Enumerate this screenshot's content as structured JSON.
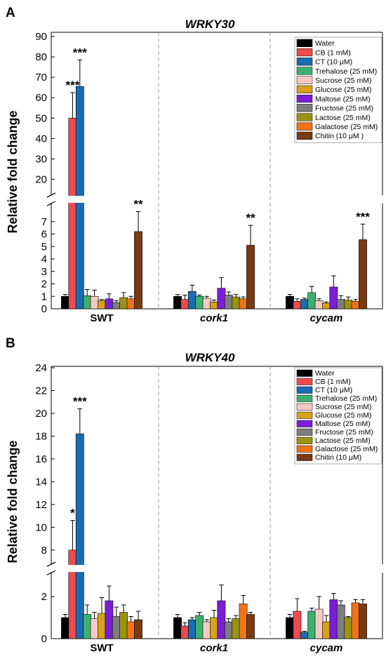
{
  "colors": {
    "Water": "#000000",
    "CB (1 mM)": "#ef4a4c",
    "CT (10 μM)": "#1a6cb0",
    "Trehalose (25 mM)": "#3db06f",
    "Sucrose (25 mM)": "#f7c9c4",
    "Glucose (25 mM)": "#d6a21b",
    "Maltose (25 mM)": "#7a1fd6",
    "Fructose (25 mM)": "#7d7d7d",
    "Lactose (25 mM)": "#999412",
    "Galactose (25 mM)": "#f07318",
    "Chitin (10 μM)": "#7a3a12",
    "Chitin (10 μM )": "#7a3a12"
  },
  "chart_data": [
    {
      "type": "bar",
      "panel_label": "A",
      "title": "WRKY30",
      "ylabel": "Relative fold change",
      "groups": [
        "SWT",
        "cork1",
        "cycam"
      ],
      "axis_break": {
        "lower_range": [
          0,
          8
        ],
        "upper_range": [
          15,
          90
        ]
      },
      "yticks_lower": [
        "0",
        "1",
        "2",
        "3",
        "4",
        "5",
        "6",
        "7"
      ],
      "yticks_upper": [
        "20",
        "30",
        "40",
        "50",
        "60",
        "70",
        "80",
        "90"
      ],
      "legend": [
        "Water",
        "CB (1 mM)",
        "CT (10 μM)",
        "Trehalose (25 mM)",
        "Sucrose (25 mM)",
        "Glucose (25 mM)",
        "Maltose (25 mM)",
        "Fructose (25 mM)",
        "Lactose (25 mM)",
        "Galactose (25 mM)",
        "Chitin (10 μM )"
      ],
      "legend_position": "top-right",
      "series": [
        {
          "name": "Water",
          "values": [
            1.0,
            1.0,
            1.0
          ],
          "errors": [
            0.15,
            0.15,
            0.15
          ],
          "stars": [
            "",
            "",
            ""
          ]
        },
        {
          "name": "CB (1 mM)",
          "values": [
            50.0,
            0.75,
            0.6
          ],
          "errors": [
            12.5,
            0.35,
            0.2
          ],
          "stars": [
            "***",
            "",
            ""
          ]
        },
        {
          "name": "CT (10 μM)",
          "values": [
            65.5,
            1.4,
            0.75
          ],
          "errors": [
            13.0,
            0.5,
            0.1
          ],
          "stars": [
            "***",
            "",
            ""
          ]
        },
        {
          "name": "Trehalose (25 mM)",
          "values": [
            1.05,
            1.0,
            1.3
          ],
          "errors": [
            0.5,
            0.1,
            0.5
          ],
          "stars": [
            "",
            "",
            ""
          ]
        },
        {
          "name": "Sucrose (25 mM)",
          "values": [
            1.0,
            0.85,
            0.65
          ],
          "errors": [
            0.5,
            0.15,
            0.15
          ],
          "stars": [
            "",
            "",
            ""
          ]
        },
        {
          "name": "Glucose (25 mM)",
          "values": [
            0.65,
            0.55,
            0.45
          ],
          "errors": [
            0.1,
            0.15,
            0.1
          ],
          "stars": [
            "",
            "",
            ""
          ]
        },
        {
          "name": "Maltose (25 mM)",
          "values": [
            0.8,
            1.65,
            1.75
          ],
          "errors": [
            0.4,
            0.85,
            0.9
          ],
          "stars": [
            "",
            "",
            ""
          ]
        },
        {
          "name": "Fructose (25 mM)",
          "values": [
            0.5,
            1.1,
            0.75
          ],
          "errors": [
            0.15,
            0.25,
            0.3
          ],
          "stars": [
            "",
            "",
            ""
          ]
        },
        {
          "name": "Lactose (25 mM)",
          "values": [
            0.9,
            0.95,
            0.7
          ],
          "errors": [
            0.4,
            0.2,
            0.25
          ],
          "stars": [
            "",
            "",
            ""
          ]
        },
        {
          "name": "Galactose (25 mM)",
          "values": [
            0.8,
            0.8,
            0.6
          ],
          "errors": [
            0.2,
            0.15,
            0.15
          ],
          "stars": [
            "",
            "",
            ""
          ]
        },
        {
          "name": "Chitin (10 μM )",
          "values": [
            6.2,
            5.1,
            5.55
          ],
          "errors": [
            1.6,
            1.6,
            1.25
          ],
          "stars": [
            "**",
            "**",
            "***"
          ]
        }
      ]
    },
    {
      "type": "bar",
      "panel_label": "B",
      "title": "WRKY40",
      "ylabel": "Relative fold change",
      "groups": [
        "SWT",
        "cork1",
        "cycam"
      ],
      "axis_break": {
        "lower_range": [
          0,
          3
        ],
        "upper_range": [
          7,
          24
        ]
      },
      "yticks_lower": [
        "0",
        "2"
      ],
      "yticks_upper": [
        "8",
        "10",
        "12",
        "14",
        "16",
        "18",
        "20",
        "22",
        "24"
      ],
      "legend": [
        "Water",
        "CB (1 mM)",
        "CT (10 μM)",
        "Trehalose (25 mM)",
        "Sucrose (25 mM)",
        "Glucose (25 mM)",
        "Maltose (25 mM)",
        "Fructose (25 mM)",
        "Lactose (25 mM)",
        "Galactose (25 mM)",
        "Chitin (10 μM)"
      ],
      "legend_position": "top-right",
      "series": [
        {
          "name": "Water",
          "values": [
            1.0,
            1.0,
            1.0
          ],
          "errors": [
            0.15,
            0.15,
            0.15
          ],
          "stars": [
            "",
            "",
            ""
          ]
        },
        {
          "name": "CB (1 mM)",
          "values": [
            8.0,
            0.6,
            1.3
          ],
          "errors": [
            2.6,
            0.15,
            0.6
          ],
          "stars": [
            "*",
            "",
            ""
          ]
        },
        {
          "name": "CT (10 μM)",
          "values": [
            18.2,
            0.9,
            0.3
          ],
          "errors": [
            2.2,
            0.1,
            0.05
          ],
          "stars": [
            "***",
            "",
            ""
          ]
        },
        {
          "name": "Trehalose (25 mM)",
          "values": [
            1.15,
            1.1,
            1.3
          ],
          "errors": [
            0.45,
            0.15,
            0.15
          ],
          "stars": [
            "",
            "",
            ""
          ]
        },
        {
          "name": "Sucrose (25 mM)",
          "values": [
            0.95,
            0.8,
            1.4
          ],
          "errors": [
            0.3,
            0.1,
            0.6
          ],
          "stars": [
            "",
            "",
            ""
          ]
        },
        {
          "name": "Glucose (25 mM)",
          "values": [
            1.2,
            1.0,
            0.8
          ],
          "errors": [
            0.75,
            0.35,
            0.3
          ],
          "stars": [
            "",
            "",
            ""
          ]
        },
        {
          "name": "Maltose (25 mM)",
          "values": [
            1.8,
            1.8,
            1.85
          ],
          "errors": [
            0.7,
            0.75,
            0.3
          ],
          "stars": [
            "",
            "",
            ""
          ]
        },
        {
          "name": "Fructose (25 mM)",
          "values": [
            1.05,
            0.8,
            1.6
          ],
          "errors": [
            0.45,
            0.15,
            0.2
          ],
          "stars": [
            "",
            "",
            ""
          ]
        },
        {
          "name": "Lactose (25 mM)",
          "values": [
            1.25,
            0.95,
            1.0
          ],
          "errors": [
            0.35,
            0.15,
            0.05
          ],
          "stars": [
            "",
            "",
            ""
          ]
        },
        {
          "name": "Galactose (25 mM)",
          "values": [
            0.8,
            1.65,
            1.7
          ],
          "errors": [
            0.25,
            0.4,
            0.15
          ],
          "stars": [
            "",
            "",
            ""
          ]
        },
        {
          "name": "Chitin (10 μM)",
          "values": [
            0.9,
            1.15,
            1.65
          ],
          "errors": [
            0.4,
            0.1,
            0.2
          ],
          "stars": [
            "",
            "",
            ""
          ]
        }
      ]
    }
  ]
}
